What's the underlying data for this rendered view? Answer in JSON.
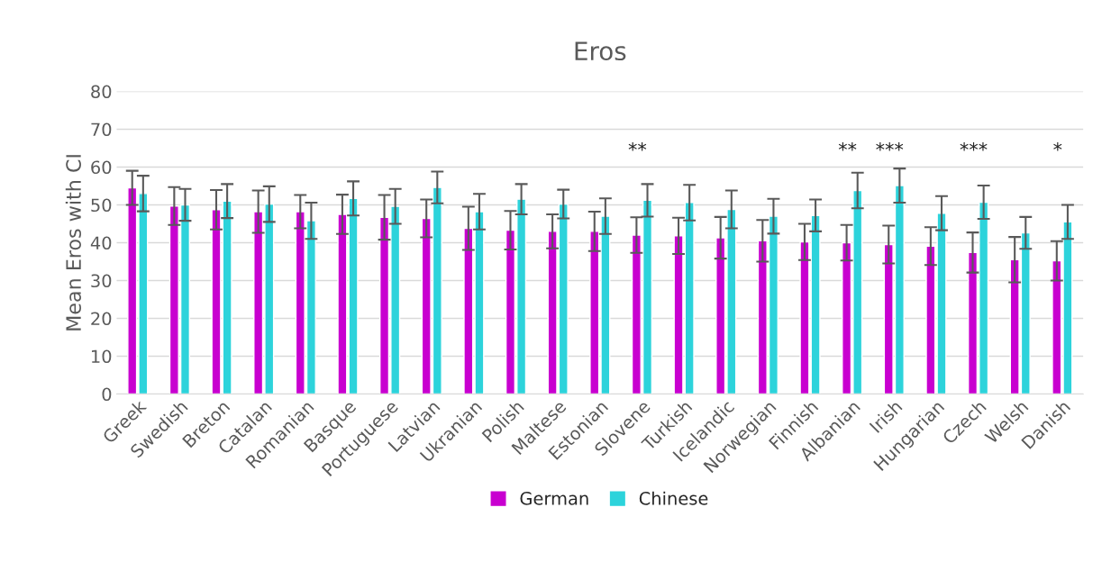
{
  "chart_data": {
    "type": "bar",
    "title": "Eros",
    "ylabel": "Mean Eros with CI",
    "categories": [
      "Greek",
      "Swedish",
      "Breton",
      "Catalan",
      "Romanian",
      "Basque",
      "Portuguese",
      "Latvian",
      "Ukranian",
      "Polish",
      "Maltese",
      "Estonian",
      "Slovene",
      "Turkish",
      "Icelandic",
      "Norwegian",
      "Finnish",
      "Albanian",
      "Irish",
      "Hungarian",
      "Czech",
      "Welsh",
      "Danish"
    ],
    "series": [
      {
        "name": "German",
        "color": "#c800d0",
        "values": [
          54.5,
          49.7,
          48.7,
          48.2,
          48.2,
          47.5,
          46.7,
          46.4,
          43.8,
          43.3,
          43.0,
          43.0,
          42.0,
          41.8,
          41.3,
          40.5,
          40.2,
          40.0,
          39.5,
          39.1,
          37.4,
          35.5,
          35.2
        ],
        "errors": [
          4.5,
          5.0,
          5.2,
          5.6,
          4.4,
          5.2,
          5.9,
          5.0,
          5.7,
          5.1,
          4.5,
          5.2,
          4.7,
          4.8,
          5.5,
          5.5,
          4.8,
          4.7,
          5.0,
          5.0,
          5.3,
          6.0,
          5.2
        ]
      },
      {
        "name": "Chinese",
        "color": "#2dd3db",
        "values": [
          53.0,
          50.0,
          51.0,
          50.2,
          45.8,
          51.7,
          49.6,
          54.6,
          48.2,
          51.5,
          50.2,
          47.0,
          51.2,
          50.6,
          48.8,
          47.0,
          47.2,
          53.8,
          55.1,
          47.8,
          50.7,
          42.6,
          45.5
        ],
        "errors": [
          4.7,
          4.2,
          4.5,
          4.7,
          4.8,
          4.5,
          4.6,
          4.2,
          4.7,
          4.0,
          3.8,
          4.7,
          4.3,
          4.7,
          5.0,
          4.6,
          4.2,
          4.7,
          4.5,
          4.5,
          4.4,
          4.2,
          4.5
        ]
      }
    ],
    "ylim": [
      0,
      80
    ],
    "yticks": [
      0,
      10,
      20,
      30,
      40,
      50,
      60,
      70,
      80
    ],
    "grid": "y",
    "legend": "bottom",
    "annotations": [
      {
        "text": "**",
        "x": "Slovene",
        "y": 55.5
      },
      {
        "text": "**",
        "x": "Albanian",
        "y": 58.5
      },
      {
        "text": "***",
        "x": "Irish",
        "y": 59.6
      },
      {
        "text": "***",
        "x": "Czech",
        "y": 55.1
      },
      {
        "text": "*",
        "x": "Danish",
        "y": 50.0
      }
    ]
  }
}
